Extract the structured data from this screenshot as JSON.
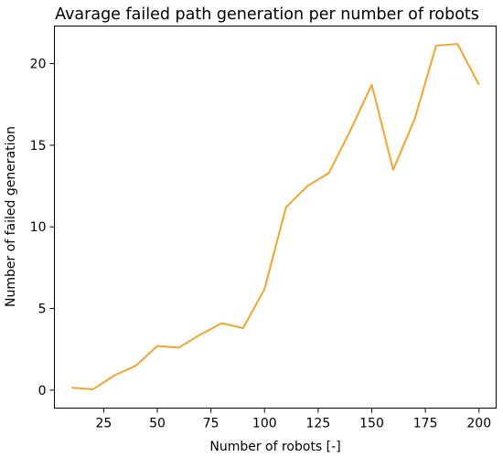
{
  "chart_data": {
    "type": "line",
    "title": "Avarage failed path generation per number of robots",
    "xlabel": "Number of robots [-]",
    "ylabel": "Number of failed generation",
    "xlim": [
      2,
      208
    ],
    "ylim": [
      -1.1,
      22.3
    ],
    "x_ticks": [
      25,
      50,
      75,
      100,
      125,
      150,
      175,
      200
    ],
    "y_ticks": [
      0,
      5,
      10,
      15,
      20
    ],
    "grid": false,
    "series": [
      {
        "color": "#f0a430",
        "x": [
          10,
          20,
          30,
          40,
          50,
          60,
          70,
          80,
          90,
          100,
          110,
          120,
          130,
          140,
          150,
          160,
          170,
          180,
          190,
          200
        ],
        "y": [
          0.15,
          0.05,
          0.9,
          1.5,
          2.7,
          2.6,
          3.4,
          4.1,
          3.8,
          6.2,
          11.2,
          12.5,
          13.3,
          15.9,
          18.7,
          13.5,
          16.6,
          21.1,
          21.2,
          18.7
        ]
      }
    ]
  }
}
